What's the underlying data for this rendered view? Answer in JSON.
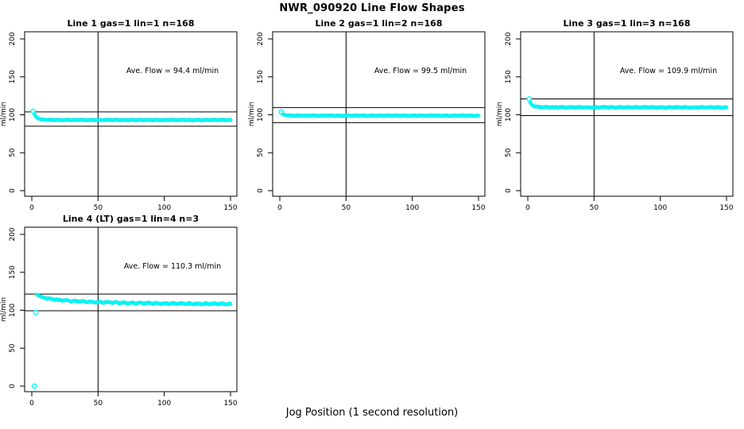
{
  "title": "NWR_090920  Line Flow Shapes",
  "xlabel": "Jog Position (1 second resolution)",
  "colors": {
    "point": "#00ffff",
    "point_edge": "#00e0e0",
    "line": "#000000",
    "background": "#ffffff"
  },
  "axes": {
    "ylabel": "ml/min",
    "x_ticks": [
      0,
      50,
      100,
      150
    ],
    "y_ticks": [
      0,
      50,
      100,
      150,
      200
    ],
    "xlim": [
      0,
      155
    ],
    "ylim": [
      0,
      210
    ],
    "vline_x": 50,
    "grid": false,
    "legend": "none"
  },
  "chart_data": [
    {
      "type": "scatter",
      "title": "Line 1 gas=1 lin=1 n=168",
      "annotation": "Ave. Flow =  94.4  ml/min",
      "ave_flow_ml_min": 94.4,
      "hlines": [
        103.8,
        85.0
      ],
      "jitter": 0.35,
      "isolated_points": [
        [
          1,
          104.8
        ]
      ],
      "points": [
        [
          2,
          100.5
        ],
        [
          3,
          98.0
        ],
        [
          4,
          96.3
        ],
        [
          5,
          95.2
        ],
        [
          6,
          94.5
        ],
        [
          7,
          94.0
        ],
        [
          8,
          93.8
        ],
        [
          10,
          93.5
        ],
        [
          12,
          93.4
        ],
        [
          14,
          93.2
        ],
        [
          16,
          93.4
        ],
        [
          18,
          93.1
        ],
        [
          20,
          93.3
        ],
        [
          24,
          93.0
        ],
        [
          28,
          93.3
        ],
        [
          32,
          93.1
        ],
        [
          36,
          93.4
        ],
        [
          40,
          93.0
        ],
        [
          45,
          93.2
        ],
        [
          50,
          93.0
        ],
        [
          55,
          93.3
        ],
        [
          60,
          93.1
        ],
        [
          65,
          93.2
        ],
        [
          70,
          93.0
        ],
        [
          75,
          93.3
        ],
        [
          80,
          93.1
        ],
        [
          85,
          93.2
        ],
        [
          90,
          93.0
        ],
        [
          95,
          93.2
        ],
        [
          100,
          93.1
        ],
        [
          105,
          93.3
        ],
        [
          110,
          93.0
        ],
        [
          115,
          93.2
        ],
        [
          120,
          93.1
        ],
        [
          125,
          93.2
        ],
        [
          130,
          93.0
        ],
        [
          135,
          93.2
        ],
        [
          140,
          93.1
        ],
        [
          145,
          93.2
        ],
        [
          150,
          93.1
        ]
      ]
    },
    {
      "type": "scatter",
      "title": "Line 2 gas=1 lin=2 n=168",
      "annotation": "Ave. Flow =  99.5  ml/min",
      "ave_flow_ml_min": 99.5,
      "hlines": [
        109.5,
        89.6
      ],
      "jitter": 0.35,
      "isolated_points": [
        [
          1,
          104.0
        ]
      ],
      "points": [
        [
          2,
          101.3
        ],
        [
          3,
          100.2
        ],
        [
          4,
          99.7
        ],
        [
          5,
          99.4
        ],
        [
          6,
          99.2
        ],
        [
          8,
          99.1
        ],
        [
          10,
          99.0
        ],
        [
          12,
          98.9
        ],
        [
          14,
          99.1
        ],
        [
          16,
          98.9
        ],
        [
          18,
          99.0
        ],
        [
          20,
          98.9
        ],
        [
          24,
          99.1
        ],
        [
          28,
          98.8
        ],
        [
          32,
          99.0
        ],
        [
          36,
          98.9
        ],
        [
          40,
          99.0
        ],
        [
          45,
          98.8
        ],
        [
          50,
          99.0
        ],
        [
          55,
          98.9
        ],
        [
          60,
          99.0
        ],
        [
          65,
          98.8
        ],
        [
          70,
          99.0
        ],
        [
          75,
          98.9
        ],
        [
          80,
          99.0
        ],
        [
          85,
          98.8
        ],
        [
          90,
          99.0
        ],
        [
          95,
          98.9
        ],
        [
          100,
          98.9
        ],
        [
          105,
          99.0
        ],
        [
          110,
          98.8
        ],
        [
          115,
          99.0
        ],
        [
          120,
          98.9
        ],
        [
          125,
          98.9
        ],
        [
          130,
          98.8
        ],
        [
          135,
          99.0
        ],
        [
          140,
          98.9
        ],
        [
          145,
          98.9
        ],
        [
          150,
          98.8
        ]
      ]
    },
    {
      "type": "scatter",
      "title": "Line 3 gas=1 lin=3 n=168",
      "annotation": "Ave. Flow =  109.9  ml/min",
      "ave_flow_ml_min": 109.9,
      "hlines": [
        120.9,
        98.9
      ],
      "jitter": 0.5,
      "isolated_points": [
        [
          1,
          121.0
        ]
      ],
      "points": [
        [
          2,
          116.0
        ],
        [
          3,
          113.2
        ],
        [
          4,
          111.8
        ],
        [
          5,
          111.2
        ],
        [
          6,
          110.8
        ],
        [
          8,
          110.4
        ],
        [
          10,
          110.2
        ],
        [
          12,
          110.0
        ],
        [
          14,
          110.3
        ],
        [
          16,
          109.9
        ],
        [
          18,
          110.1
        ],
        [
          20,
          109.8
        ],
        [
          24,
          110.2
        ],
        [
          28,
          109.7
        ],
        [
          32,
          110.1
        ],
        [
          36,
          109.8
        ],
        [
          40,
          110.0
        ],
        [
          45,
          109.7
        ],
        [
          50,
          110.0
        ],
        [
          55,
          109.8
        ],
        [
          60,
          110.1
        ],
        [
          65,
          109.7
        ],
        [
          70,
          110.0
        ],
        [
          75,
          109.8
        ],
        [
          80,
          109.9
        ],
        [
          85,
          109.7
        ],
        [
          90,
          110.0
        ],
        [
          95,
          109.8
        ],
        [
          100,
          109.9
        ],
        [
          105,
          109.6
        ],
        [
          110,
          110.0
        ],
        [
          115,
          109.8
        ],
        [
          120,
          109.9
        ],
        [
          125,
          109.6
        ],
        [
          130,
          109.9
        ],
        [
          135,
          109.7
        ],
        [
          140,
          109.8
        ],
        [
          145,
          109.6
        ],
        [
          150,
          109.8
        ]
      ]
    },
    {
      "type": "scatter",
      "title": "Line 4 (LT) gas=1 lin=4 n=3",
      "annotation": "Ave. Flow =  110.3  ml/min",
      "ave_flow_ml_min": 110.3,
      "hlines": [
        121.3,
        99.3
      ],
      "jitter": 0.8,
      "isolated_points": [
        [
          2,
          0
        ],
        [
          3,
          97.0
        ]
      ],
      "points": [
        [
          4,
          120.5
        ],
        [
          5,
          119.5
        ],
        [
          6,
          118.5
        ],
        [
          7,
          118.0
        ],
        [
          8,
          117.2
        ],
        [
          10,
          116.3
        ],
        [
          12,
          115.6
        ],
        [
          14,
          115.0
        ],
        [
          16,
          114.5
        ],
        [
          18,
          114.0
        ],
        [
          20,
          113.6
        ],
        [
          24,
          113.0
        ],
        [
          28,
          112.5
        ],
        [
          32,
          112.1
        ],
        [
          36,
          111.7
        ],
        [
          40,
          111.4
        ],
        [
          45,
          111.0
        ],
        [
          50,
          110.7
        ],
        [
          55,
          110.4
        ],
        [
          60,
          110.2
        ],
        [
          65,
          110.0
        ],
        [
          70,
          109.8
        ],
        [
          75,
          109.6
        ],
        [
          80,
          109.5
        ],
        [
          85,
          109.3
        ],
        [
          90,
          109.2
        ],
        [
          95,
          109.1
        ],
        [
          100,
          109.0
        ],
        [
          105,
          108.9
        ],
        [
          110,
          108.8
        ],
        [
          115,
          108.7
        ],
        [
          120,
          108.6
        ],
        [
          125,
          108.6
        ],
        [
          130,
          108.5
        ],
        [
          135,
          108.5
        ],
        [
          140,
          108.4
        ],
        [
          145,
          108.4
        ],
        [
          150,
          108.3
        ]
      ]
    }
  ]
}
